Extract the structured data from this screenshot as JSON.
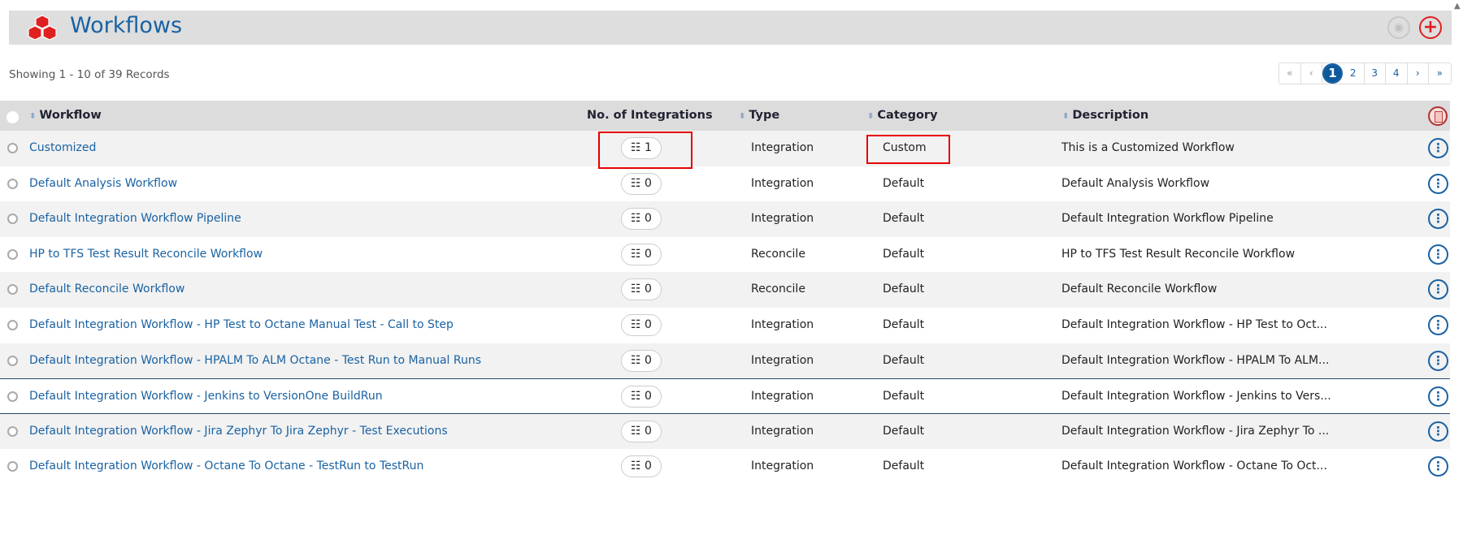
{
  "header": {
    "title": "Workflows",
    "icons": [
      "cubes-icon",
      "eye-icon",
      "plus-icon"
    ]
  },
  "summary": "Showing 1 - 10 of 39 Records",
  "pagination": {
    "first": "«",
    "prev": "‹",
    "pages": [
      "1",
      "2",
      "3",
      "4"
    ],
    "current": "1",
    "next": "›",
    "last": "»"
  },
  "columns": {
    "workflow": "Workflow",
    "integrations": "No. of Integrations",
    "type": "Type",
    "category": "Category",
    "description": "Description"
  },
  "rows": [
    {
      "name": "Customized",
      "integrations": "1",
      "type": "Integration",
      "category": "Custom",
      "description": "This is a Customized Workflow"
    },
    {
      "name": "Default Analysis Workflow",
      "integrations": "0",
      "type": "Integration",
      "category": "Default",
      "description": "Default Analysis Workflow"
    },
    {
      "name": "Default Integration Workflow Pipeline",
      "integrations": "0",
      "type": "Integration",
      "category": "Default",
      "description": "Default Integration Workflow Pipeline"
    },
    {
      "name": "HP to TFS Test Result Reconcile Workflow",
      "integrations": "0",
      "type": "Reconcile",
      "category": "Default",
      "description": "HP to TFS Test Result Reconcile Workflow"
    },
    {
      "name": "Default Reconcile Workflow",
      "integrations": "0",
      "type": "Reconcile",
      "category": "Default",
      "description": "Default Reconcile Workflow"
    },
    {
      "name": "Default Integration Workflow - HP Test to Octane Manual Test - Call to Step",
      "integrations": "0",
      "type": "Integration",
      "category": "Default",
      "description": "Default Integration Workflow - HP Test to Oct..."
    },
    {
      "name": "Default Integration Workflow - HPALM To ALM Octane - Test Run to Manual Runs",
      "integrations": "0",
      "type": "Integration",
      "category": "Default",
      "description": "Default Integration Workflow - HPALM To ALM..."
    },
    {
      "name": "Default Integration Workflow - Jenkins to VersionOne BuildRun",
      "integrations": "0",
      "type": "Integration",
      "category": "Default",
      "description": "Default Integration Workflow - Jenkins to Vers..."
    },
    {
      "name": "Default Integration Workflow - Jira Zephyr To Jira Zephyr - Test Executions",
      "integrations": "0",
      "type": "Integration",
      "category": "Default",
      "description": "Default Integration Workflow - Jira Zephyr To ..."
    },
    {
      "name": "Default Integration Workflow - Octane To Octane - TestRun to TestRun",
      "integrations": "0",
      "type": "Integration",
      "category": "Default",
      "description": "Default Integration Workflow - Octane To Oct..."
    }
  ],
  "colors": {
    "accent": "#0c5a9c",
    "link": "#1a62a3",
    "brand_red": "#e02020",
    "highlight_box": "#e60000"
  }
}
